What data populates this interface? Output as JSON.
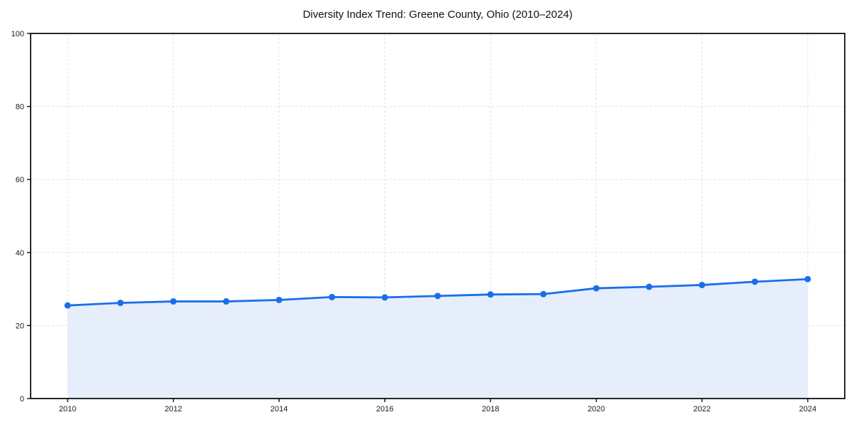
{
  "chart_data": {
    "type": "area",
    "title": "Diversity Index Trend: Greene County, Ohio (2010–2024)",
    "x": [
      2010,
      2011,
      2012,
      2013,
      2014,
      2015,
      2016,
      2017,
      2018,
      2019,
      2020,
      2021,
      2022,
      2023,
      2024
    ],
    "series": [
      {
        "name": "Diversity Index",
        "values": [
          25.5,
          26.2,
          26.6,
          26.6,
          27.0,
          27.8,
          27.7,
          28.1,
          28.5,
          28.6,
          30.2,
          30.6,
          31.1,
          32.0,
          32.7
        ]
      }
    ],
    "xlabel": "",
    "ylabel": "",
    "ylim": [
      0,
      100
    ],
    "xticks": [
      2010,
      2012,
      2014,
      2016,
      2018,
      2020,
      2022,
      2024
    ],
    "yticks": [
      0,
      20,
      40,
      60,
      80,
      100
    ],
    "grid": true,
    "grid_style": "dashed",
    "legend": false,
    "marker": "circle",
    "colors": {
      "line": "#1a6fe8",
      "marker": "#1a6fe8",
      "area_fill": "#e6eefc",
      "grid": "#e0e0e0",
      "spine": "#111111",
      "tick_text": "#1a1a1a",
      "title_text": "#111111",
      "background": "#ffffff"
    }
  }
}
